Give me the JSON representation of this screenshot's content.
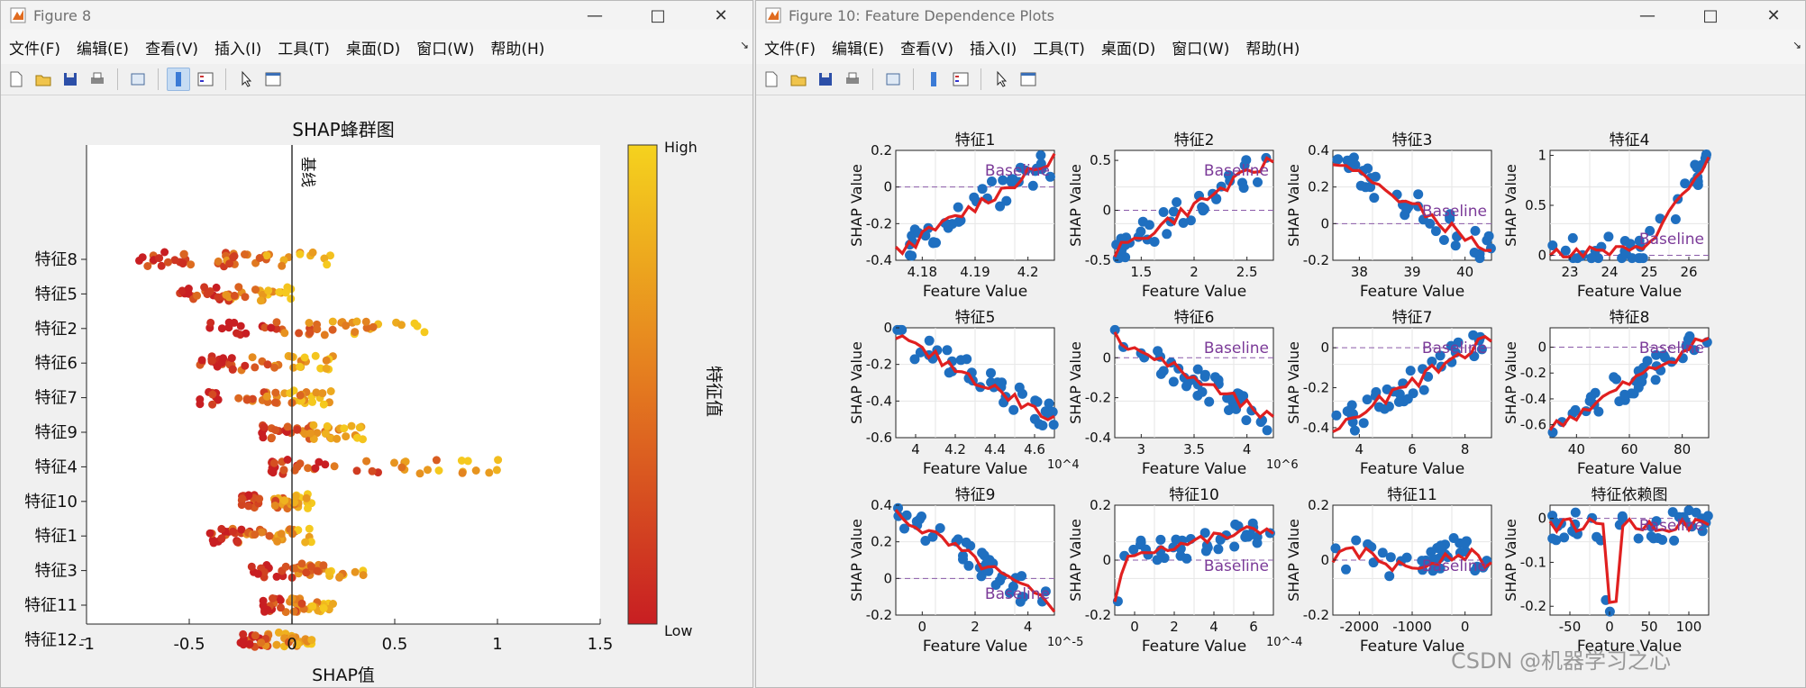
{
  "fig1": {
    "title": "Figure 8",
    "menus": [
      "文件(F)",
      "编辑(E)",
      "查看(V)",
      "插入(I)",
      "工具(T)",
      "桌面(D)",
      "窗口(W)",
      "帮助(H)"
    ],
    "plot_title": "SHAP蜂群图",
    "xlabel": "SHAP值",
    "baseline_label": "基线",
    "colorbar": {
      "high": "High",
      "low": "Low",
      "label": "特征值",
      "colors": [
        "#c81e22",
        "#f5c91e"
      ]
    },
    "chart_data": {
      "type": "scatter",
      "features": [
        "特征8",
        "特征5",
        "特征2",
        "特征6",
        "特征7",
        "特征9",
        "特征4",
        "特征10",
        "特征1",
        "特征3",
        "特征11",
        "特征12"
      ],
      "xticks": [
        -1,
        -0.5,
        0,
        0.5,
        1,
        1.5
      ],
      "xlim": [
        -1,
        1.5
      ],
      "spreads": [
        [
          -0.75,
          0.2
        ],
        [
          -0.55,
          0.0
        ],
        [
          -0.4,
          0.65
        ],
        [
          -0.45,
          0.2
        ],
        [
          -0.45,
          0.2
        ],
        [
          -0.15,
          0.35
        ],
        [
          -0.1,
          1.05
        ],
        [
          -0.25,
          0.1
        ],
        [
          -0.4,
          0.1
        ],
        [
          -0.2,
          0.35
        ],
        [
          -0.15,
          0.2
        ],
        [
          -0.25,
          0.1
        ]
      ]
    }
  },
  "fig2": {
    "title": "Figure 10: Feature Dependence Plots",
    "menus": [
      "文件(F)",
      "编辑(E)",
      "查看(V)",
      "插入(I)",
      "工具(T)",
      "桌面(D)",
      "窗口(W)",
      "帮助(H)"
    ],
    "chart_data": [
      {
        "title": "特征1",
        "ylabel": "SHAP Value",
        "xlabel": "Feature Value",
        "xticks": [
          "4.18",
          "4.19",
          "4.2"
        ],
        "yticks": [
          "0.2",
          "0",
          "-0.2",
          "-0.4"
        ],
        "exp": "",
        "baseline": "Baseline",
        "bpos": "top-right",
        "ylim": [
          -0.4,
          0.2
        ],
        "yt": [
          0.2,
          0,
          -0.2,
          -0.4
        ],
        "shape": "rise"
      },
      {
        "title": "特征2",
        "ylabel": "SHAP Value",
        "xlabel": "Feature Value",
        "xticks": [
          "1.5",
          "2",
          "2.5"
        ],
        "yticks": [
          "0.5",
          "0",
          "-0.5"
        ],
        "exp": "",
        "baseline": "Baseline",
        "bpos": "top-right",
        "ylim": [
          -0.5,
          0.6
        ],
        "yt": [
          0.5,
          0,
          -0.5
        ],
        "shape": "rise"
      },
      {
        "title": "特征3",
        "ylabel": "SHAP Value",
        "xlabel": "Feature Value",
        "xticks": [
          "38",
          "39",
          "40"
        ],
        "yticks": [
          "0.4",
          "0.2",
          "0",
          "-0.2"
        ],
        "exp": "",
        "baseline": "Baseline",
        "bpos": "mid-right",
        "ylim": [
          -0.2,
          0.4
        ],
        "yt": [
          0.4,
          0.2,
          0,
          -0.2
        ],
        "shape": "fall"
      },
      {
        "title": "特征4",
        "ylabel": "SHAP Value",
        "xlabel": "Feature Value",
        "xticks": [
          "23",
          "24",
          "25",
          "26"
        ],
        "yticks": [
          "1",
          "0.5",
          "0"
        ],
        "exp": "",
        "baseline": "Baseline",
        "bpos": "bottom-right",
        "ylim": [
          -0.05,
          1.05
        ],
        "yt": [
          1,
          0.5,
          0
        ],
        "shape": "hockey"
      },
      {
        "title": "特征5",
        "ylabel": "SHAP Value",
        "xlabel": "Feature Value",
        "xticks": [
          "4",
          "4.2",
          "4.4",
          "4.6"
        ],
        "yticks": [
          "0",
          "-0.2",
          "-0.4",
          "-0.6"
        ],
        "exp": "10^4",
        "baseline": "",
        "bpos": "top-right",
        "ylim": [
          -0.6,
          0
        ],
        "yt": [
          0,
          -0.2,
          -0.4,
          -0.6
        ],
        "shape": "decline"
      },
      {
        "title": "特征6",
        "ylabel": "SHAP Value",
        "xlabel": "Feature Value",
        "xticks": [
          "3",
          "3.5",
          "4"
        ],
        "yticks": [
          "0",
          "-0.2",
          "-0.4"
        ],
        "exp": "10^6",
        "baseline": "Baseline",
        "bpos": "top-right",
        "ylim": [
          -0.4,
          0.15
        ],
        "yt": [
          0,
          -0.2,
          -0.4
        ],
        "shape": "decline"
      },
      {
        "title": "特征7",
        "ylabel": "SHAP Value",
        "xlabel": "Feature Value",
        "xticks": [
          "4",
          "6",
          "8"
        ],
        "yticks": [
          "0",
          "-0.2",
          "-0.4"
        ],
        "exp": "",
        "baseline": "Baseline",
        "bpos": "top-right",
        "ylim": [
          -0.45,
          0.1
        ],
        "yt": [
          0,
          -0.2,
          -0.4
        ],
        "shape": "rise"
      },
      {
        "title": "特征8",
        "ylabel": "SHAP Value",
        "xlabel": "Feature Value",
        "xticks": [
          "40",
          "60",
          "80"
        ],
        "yticks": [
          "0",
          "-0.2",
          "-0.4",
          "-0.6"
        ],
        "exp": "",
        "baseline": "Baseline",
        "bpos": "top-right",
        "ylim": [
          -0.7,
          0.15
        ],
        "yt": [
          0,
          -0.2,
          -0.4,
          -0.6
        ],
        "shape": "rise"
      },
      {
        "title": "特征9",
        "ylabel": "SHAP Value",
        "xlabel": "Feature Value",
        "xticks": [
          "0",
          "2",
          "4"
        ],
        "yticks": [
          "0.4",
          "0.2",
          "0",
          "-0.2"
        ],
        "exp": "10^-5",
        "baseline": "Baseline",
        "bpos": "bottom-right",
        "ylim": [
          -0.2,
          0.4
        ],
        "yt": [
          0.4,
          0.2,
          0,
          -0.2
        ],
        "shape": "fall"
      },
      {
        "title": "特征10",
        "ylabel": "SHAP Value",
        "xlabel": "Feature Value",
        "xticks": [
          "0",
          "2",
          "4",
          "6"
        ],
        "yticks": [
          "0.2",
          "0",
          "-0.2"
        ],
        "exp": "10^-4",
        "baseline": "Baseline",
        "bpos": "mid-right",
        "ylim": [
          -0.2,
          0.2
        ],
        "yt": [
          0.2,
          0,
          -0.2
        ],
        "shape": "jump"
      },
      {
        "title": "特征11",
        "ylabel": "SHAP Value",
        "xlabel": "Feature Value",
        "xticks": [
          "-2000",
          "-1000",
          "0"
        ],
        "yticks": [
          "0.2",
          "0",
          "-0.2"
        ],
        "exp": "",
        "baseline": "Baseline",
        "bpos": "mid-right",
        "ylim": [
          -0.2,
          0.2
        ],
        "yt": [
          0.2,
          0,
          -0.2
        ],
        "shape": "flat"
      },
      {
        "title": "特征依赖图",
        "ylabel": "SHAP Value",
        "xlabel": "Feature Value",
        "xticks": [
          "-50",
          "0",
          "50",
          "100"
        ],
        "yticks": [
          "0",
          "-0.1",
          "-0.2"
        ],
        "exp": "",
        "baseline": "Baseline",
        "bpos": "top-right",
        "ylim": [
          -0.22,
          0.03
        ],
        "yt": [
          0,
          -0.1,
          -0.2
        ],
        "shape": "dip"
      }
    ]
  },
  "watermark": {
    "text": "CSDN @机器学习之心"
  }
}
